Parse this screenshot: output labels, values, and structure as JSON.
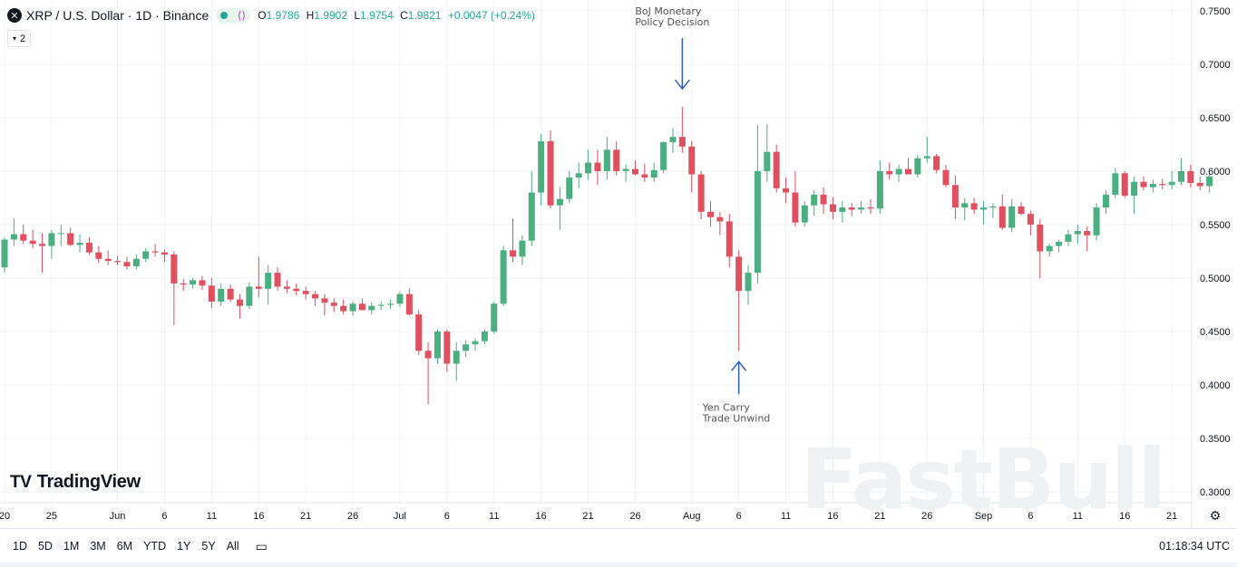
{
  "header": {
    "symbol_icon": "x-logo-icon",
    "title": "XRP / U.S. Dollar · 1D · Binance",
    "ohlc": [
      {
        "k": "O",
        "v": "1.9786"
      },
      {
        "k": "H",
        "v": "1.9902"
      },
      {
        "k": "L",
        "v": "1.9754"
      },
      {
        "k": "C",
        "v": "1.9821"
      },
      {
        "k": "",
        "v": "+0.0047 (+0.24%)"
      }
    ]
  },
  "badge": {
    "label": "2",
    "icon": "chevron-down-icon"
  },
  "logo": {
    "text": "TradingView"
  },
  "watermark": "FastBull",
  "toolbar": {
    "ranges": [
      "1D",
      "5D",
      "1M",
      "3M",
      "6M",
      "YTD",
      "1Y",
      "5Y",
      "All"
    ],
    "time": "01:18:34 UTC"
  },
  "colors": {
    "up": "#4caf82",
    "down": "#e0505f",
    "grid": "#f0f3fa",
    "arrow": "#2f5ec4",
    "axis_text": "#131722"
  },
  "chart_data": {
    "type": "candlestick",
    "y_axis": {
      "min": 0.29,
      "max": 0.76,
      "ticks": [
        "0.3000",
        "0.3500",
        "0.4000",
        "0.4500",
        "0.5000",
        "0.5500",
        "0.6000",
        "0.6500",
        "0.7000",
        "0.7500"
      ]
    },
    "x_ticks": [
      {
        "label": "20",
        "i": 0
      },
      {
        "label": "25",
        "i": 5
      },
      {
        "label": "Jun",
        "i": 12
      },
      {
        "label": "6",
        "i": 17
      },
      {
        "label": "11",
        "i": 22
      },
      {
        "label": "16",
        "i": 27
      },
      {
        "label": "21",
        "i": 32
      },
      {
        "label": "26",
        "i": 37
      },
      {
        "label": "Jul",
        "i": 42
      },
      {
        "label": "6",
        "i": 47
      },
      {
        "label": "11",
        "i": 52
      },
      {
        "label": "16",
        "i": 57
      },
      {
        "label": "21",
        "i": 62
      },
      {
        "label": "26",
        "i": 67
      },
      {
        "label": "Aug",
        "i": 73
      },
      {
        "label": "6",
        "i": 78
      },
      {
        "label": "11",
        "i": 83
      },
      {
        "label": "16",
        "i": 88
      },
      {
        "label": "21",
        "i": 93
      },
      {
        "label": "26",
        "i": 98
      },
      {
        "label": "Sep",
        "i": 104
      },
      {
        "label": "6",
        "i": 109
      },
      {
        "label": "11",
        "i": 114
      },
      {
        "label": "16",
        "i": 119
      },
      {
        "label": "21",
        "i": 124
      }
    ],
    "candles": [
      [
        0.51,
        0.538,
        0.505,
        0.536
      ],
      [
        0.536,
        0.556,
        0.53,
        0.541
      ],
      [
        0.541,
        0.55,
        0.532,
        0.535
      ],
      [
        0.535,
        0.545,
        0.528,
        0.532
      ],
      [
        0.532,
        0.542,
        0.505,
        0.53
      ],
      [
        0.53,
        0.545,
        0.518,
        0.542
      ],
      [
        0.542,
        0.55,
        0.53,
        0.542
      ],
      [
        0.542,
        0.547,
        0.53,
        0.531
      ],
      [
        0.531,
        0.541,
        0.524,
        0.533
      ],
      [
        0.533,
        0.538,
        0.522,
        0.524
      ],
      [
        0.524,
        0.53,
        0.514,
        0.518
      ],
      [
        0.518,
        0.526,
        0.512,
        0.516
      ],
      [
        0.516,
        0.521,
        0.512,
        0.515
      ],
      [
        0.515,
        0.52,
        0.508,
        0.511
      ],
      [
        0.511,
        0.522,
        0.508,
        0.518
      ],
      [
        0.518,
        0.528,
        0.515,
        0.525
      ],
      [
        0.525,
        0.532,
        0.52,
        0.524
      ],
      [
        0.524,
        0.527,
        0.515,
        0.522
      ],
      [
        0.522,
        0.525,
        0.456,
        0.495
      ],
      [
        0.495,
        0.499,
        0.488,
        0.494
      ],
      [
        0.494,
        0.5,
        0.49,
        0.498
      ],
      [
        0.498,
        0.502,
        0.489,
        0.493
      ],
      [
        0.493,
        0.5,
        0.472,
        0.478
      ],
      [
        0.478,
        0.495,
        0.474,
        0.49
      ],
      [
        0.49,
        0.494,
        0.478,
        0.48
      ],
      [
        0.48,
        0.485,
        0.462,
        0.474
      ],
      [
        0.474,
        0.496,
        0.471,
        0.492
      ],
      [
        0.492,
        0.52,
        0.482,
        0.49
      ],
      [
        0.49,
        0.512,
        0.475,
        0.505
      ],
      [
        0.505,
        0.51,
        0.488,
        0.492
      ],
      [
        0.492,
        0.498,
        0.486,
        0.49
      ],
      [
        0.49,
        0.495,
        0.484,
        0.488
      ],
      [
        0.488,
        0.492,
        0.48,
        0.485
      ],
      [
        0.485,
        0.488,
        0.474,
        0.481
      ],
      [
        0.481,
        0.485,
        0.465,
        0.477
      ],
      [
        0.477,
        0.481,
        0.468,
        0.474
      ],
      [
        0.474,
        0.48,
        0.466,
        0.469
      ],
      [
        0.469,
        0.478,
        0.465,
        0.476
      ],
      [
        0.476,
        0.481,
        0.47,
        0.47
      ],
      [
        0.47,
        0.478,
        0.466,
        0.474
      ],
      [
        0.474,
        0.478,
        0.47,
        0.475
      ],
      [
        0.475,
        0.48,
        0.471,
        0.476
      ],
      [
        0.476,
        0.487,
        0.473,
        0.485
      ],
      [
        0.485,
        0.49,
        0.465,
        0.466
      ],
      [
        0.466,
        0.47,
        0.428,
        0.432
      ],
      [
        0.432,
        0.44,
        0.382,
        0.425
      ],
      [
        0.425,
        0.452,
        0.42,
        0.45
      ],
      [
        0.45,
        0.452,
        0.412,
        0.42
      ],
      [
        0.42,
        0.44,
        0.404,
        0.432
      ],
      [
        0.432,
        0.442,
        0.426,
        0.438
      ],
      [
        0.438,
        0.444,
        0.432,
        0.441
      ],
      [
        0.441,
        0.452,
        0.438,
        0.45
      ],
      [
        0.45,
        0.478,
        0.448,
        0.476
      ],
      [
        0.476,
        0.53,
        0.474,
        0.526
      ],
      [
        0.526,
        0.556,
        0.515,
        0.52
      ],
      [
        0.52,
        0.54,
        0.512,
        0.535
      ],
      [
        0.535,
        0.6,
        0.53,
        0.58
      ],
      [
        0.58,
        0.635,
        0.568,
        0.628
      ],
      [
        0.628,
        0.638,
        0.565,
        0.568
      ],
      [
        0.568,
        0.585,
        0.545,
        0.574
      ],
      [
        0.574,
        0.6,
        0.57,
        0.594
      ],
      [
        0.594,
        0.608,
        0.584,
        0.598
      ],
      [
        0.598,
        0.62,
        0.592,
        0.608
      ],
      [
        0.608,
        0.62,
        0.587,
        0.6
      ],
      [
        0.6,
        0.632,
        0.592,
        0.62
      ],
      [
        0.62,
        0.628,
        0.596,
        0.6
      ],
      [
        0.6,
        0.606,
        0.59,
        0.602
      ],
      [
        0.602,
        0.61,
        0.596,
        0.597
      ],
      [
        0.597,
        0.607,
        0.59,
        0.594
      ],
      [
        0.594,
        0.608,
        0.59,
        0.601
      ],
      [
        0.601,
        0.628,
        0.598,
        0.627
      ],
      [
        0.627,
        0.64,
        0.617,
        0.632
      ],
      [
        0.632,
        0.66,
        0.617,
        0.623
      ],
      [
        0.623,
        0.628,
        0.58,
        0.597
      ],
      [
        0.597,
        0.6,
        0.555,
        0.562
      ],
      [
        0.562,
        0.572,
        0.548,
        0.557
      ],
      [
        0.557,
        0.562,
        0.54,
        0.553
      ],
      [
        0.553,
        0.56,
        0.51,
        0.52
      ],
      [
        0.52,
        0.526,
        0.432,
        0.488
      ],
      [
        0.488,
        0.512,
        0.475,
        0.505
      ],
      [
        0.505,
        0.643,
        0.495,
        0.6
      ],
      [
        0.6,
        0.644,
        0.59,
        0.618
      ],
      [
        0.618,
        0.625,
        0.58,
        0.584
      ],
      [
        0.584,
        0.594,
        0.57,
        0.58
      ],
      [
        0.58,
        0.6,
        0.548,
        0.552
      ],
      [
        0.552,
        0.572,
        0.548,
        0.568
      ],
      [
        0.568,
        0.582,
        0.558,
        0.578
      ],
      [
        0.578,
        0.585,
        0.56,
        0.569
      ],
      [
        0.569,
        0.576,
        0.555,
        0.562
      ],
      [
        0.562,
        0.572,
        0.552,
        0.566
      ],
      [
        0.566,
        0.57,
        0.558,
        0.564
      ],
      [
        0.564,
        0.572,
        0.56,
        0.566
      ],
      [
        0.566,
        0.574,
        0.56,
        0.565
      ],
      [
        0.565,
        0.61,
        0.56,
        0.6
      ],
      [
        0.6,
        0.608,
        0.592,
        0.597
      ],
      [
        0.597,
        0.606,
        0.59,
        0.602
      ],
      [
        0.602,
        0.612,
        0.598,
        0.597
      ],
      [
        0.597,
        0.615,
        0.594,
        0.612
      ],
      [
        0.612,
        0.632,
        0.608,
        0.614
      ],
      [
        0.614,
        0.616,
        0.598,
        0.601
      ],
      [
        0.601,
        0.606,
        0.585,
        0.587
      ],
      [
        0.587,
        0.596,
        0.555,
        0.566
      ],
      [
        0.566,
        0.575,
        0.554,
        0.57
      ],
      [
        0.57,
        0.575,
        0.56,
        0.564
      ],
      [
        0.564,
        0.572,
        0.55,
        0.566
      ],
      [
        0.566,
        0.57,
        0.556,
        0.567
      ],
      [
        0.567,
        0.578,
        0.545,
        0.547
      ],
      [
        0.547,
        0.574,
        0.543,
        0.567
      ],
      [
        0.567,
        0.571,
        0.559,
        0.56
      ],
      [
        0.56,
        0.563,
        0.54,
        0.55
      ],
      [
        0.55,
        0.555,
        0.5,
        0.525
      ],
      [
        0.525,
        0.532,
        0.52,
        0.53
      ],
      [
        0.53,
        0.536,
        0.524,
        0.534
      ],
      [
        0.534,
        0.545,
        0.53,
        0.541
      ],
      [
        0.541,
        0.55,
        0.532,
        0.544
      ],
      [
        0.544,
        0.548,
        0.525,
        0.54
      ],
      [
        0.54,
        0.57,
        0.535,
        0.566
      ],
      [
        0.566,
        0.582,
        0.56,
        0.578
      ],
      [
        0.578,
        0.603,
        0.575,
        0.598
      ],
      [
        0.598,
        0.6,
        0.575,
        0.577
      ],
      [
        0.577,
        0.595,
        0.56,
        0.59
      ],
      [
        0.59,
        0.595,
        0.582,
        0.585
      ],
      [
        0.585,
        0.592,
        0.58,
        0.588
      ],
      [
        0.588,
        0.593,
        0.583,
        0.587
      ],
      [
        0.587,
        0.6,
        0.583,
        0.59
      ],
      [
        0.59,
        0.612,
        0.587,
        0.6
      ],
      [
        0.6,
        0.606,
        0.585,
        0.589
      ],
      [
        0.589,
        0.595,
        0.582,
        0.586
      ],
      [
        0.586,
        0.6,
        0.58,
        0.595
      ]
    ],
    "annotations": [
      {
        "text": [
          "BoJ Monetary",
          "Policy Decision"
        ],
        "index": 72,
        "side": "above"
      },
      {
        "text": [
          "Yen Carry",
          "Trade Unwind"
        ],
        "index": 78,
        "side": "below"
      }
    ]
  }
}
